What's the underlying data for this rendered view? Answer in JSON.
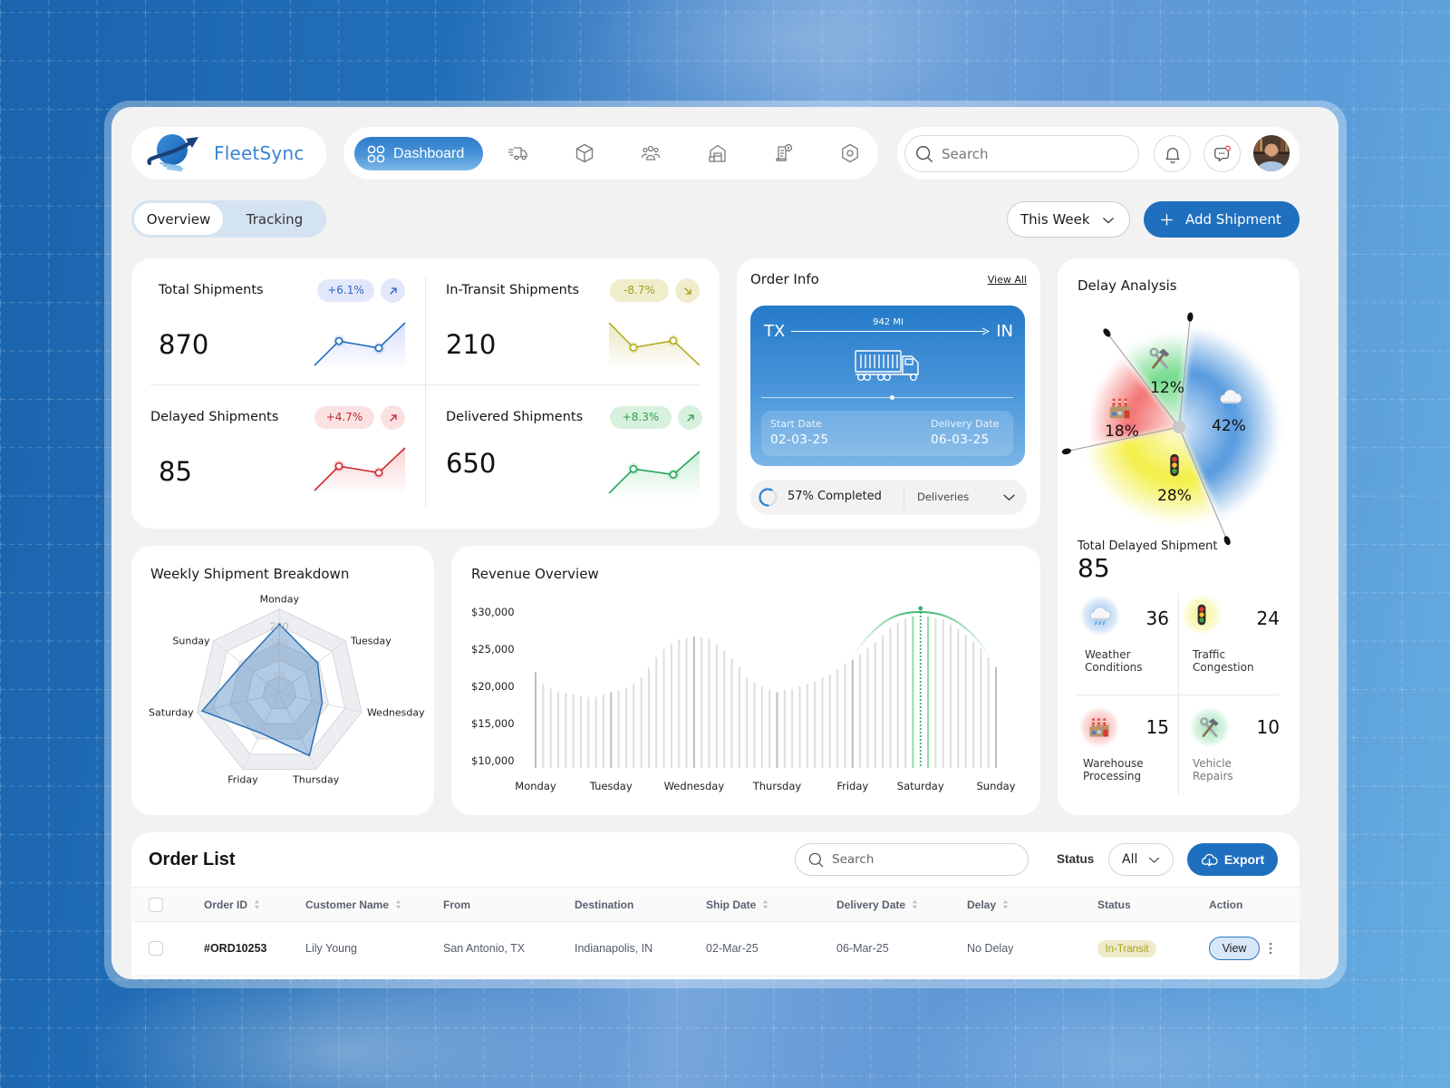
{
  "app": {
    "name": "FleetSync",
    "logo_icon": "globe-arrow-logo"
  },
  "nav": {
    "items": [
      {
        "label": "Dashboard",
        "icon": "dashboard-grid-icon",
        "active": true
      },
      {
        "icon": "fast-delivery-truck-icon"
      },
      {
        "icon": "package-box-icon"
      },
      {
        "icon": "team-users-icon"
      },
      {
        "icon": "warehouse-icon"
      },
      {
        "icon": "invoice-billing-icon"
      },
      {
        "icon": "settings-hexagon-icon"
      }
    ]
  },
  "header": {
    "search_placeholder": "Search",
    "notifications_icon": "bell-icon",
    "messages_icon": "chat-bubble-icon",
    "messages_unread": true,
    "avatar": "user-avatar"
  },
  "view_tabs": [
    {
      "label": "Overview",
      "active": true
    },
    {
      "label": "Tracking",
      "active": false
    }
  ],
  "period_select": {
    "value": "This Week"
  },
  "add_shipment": {
    "label": "Add Shipment"
  },
  "kpis": [
    {
      "title": "Total Shipments",
      "value": "870",
      "change": "+6.1%",
      "trend": "up",
      "color": "#1f6fc0",
      "badge_bg": "#e3e7fb",
      "badge_text": "#2b66c4",
      "fill": "#d9defa",
      "spark": [
        2,
        58,
        42,
        100
      ]
    },
    {
      "title": "In-Transit Shipments",
      "value": "210",
      "change": "-8.7%",
      "trend": "down",
      "color": "#b3ad1c",
      "badge_bg": "#efedcc",
      "badge_text": "#a39f1d",
      "fill": "#e9e7c2",
      "spark": [
        100,
        43,
        59,
        2
      ]
    },
    {
      "title": "Delayed Shipments",
      "value": "85",
      "change": "+4.7%",
      "trend": "up",
      "color": "#cf2a30",
      "badge_bg": "#fbe2e2",
      "badge_text": "#c0272d",
      "fill": "#f9d3d4",
      "spark": [
        2,
        58,
        43,
        100
      ]
    },
    {
      "title": "Delivered Shipments",
      "value": "650",
      "change": "+8.3%",
      "trend": "up",
      "color": "#22a35a",
      "badge_bg": "#d8f1de",
      "badge_text": "#2a9d4b",
      "fill": "#cdeed8",
      "spark": [
        4,
        60,
        47,
        100
      ]
    }
  ],
  "order_info": {
    "title": "Order Info",
    "view_all": "View All",
    "origin": "TX",
    "destination": "IN",
    "distance": "942 MI",
    "start_label": "Start Date",
    "start_date": "02-03-25",
    "delivery_label": "Delivery Date",
    "delivery_date": "06-03-25",
    "progress_pct": 57,
    "progress_label": "57% Completed",
    "filter_value": "Deliveries"
  },
  "delay_analysis": {
    "title": "Delay Analysis",
    "total_label": "Total Delayed Shipment",
    "total": "85",
    "reasons": [
      {
        "key": "weather",
        "label": "Weather Conditions",
        "count": "36",
        "pct": 42,
        "pct_label": "42%",
        "color": "#4a93dc",
        "icon": "cloud-rain-icon"
      },
      {
        "key": "traffic",
        "label": "Traffic Congestion",
        "count": "24",
        "pct": 28,
        "pct_label": "28%",
        "color": "#f2ee3a",
        "icon": "traffic-light-icon"
      },
      {
        "key": "warehouse",
        "label": "Warehouse Processing",
        "count": "15",
        "pct": 18,
        "pct_label": "18%",
        "color": "#f26a6a",
        "icon": "factory-icon"
      },
      {
        "key": "vehicle",
        "label": "Vehicle Repairs",
        "count": "10",
        "pct": 12,
        "pct_label": "12%",
        "color": "#6cd985",
        "icon": "tools-icon"
      }
    ]
  },
  "weekly_breakdown": {
    "title": "Weekly Shipment Breakdown"
  },
  "revenue": {
    "title": "Revenue Overview"
  },
  "order_list": {
    "title": "Order List",
    "search_placeholder": "Search",
    "status_label": "Status",
    "status_value": "All",
    "export_label": "Export",
    "columns": [
      {
        "label": "Order ID",
        "sortable": true
      },
      {
        "label": "Customer Name",
        "sortable": true
      },
      {
        "label": "From",
        "sortable": false
      },
      {
        "label": "Destination",
        "sortable": false
      },
      {
        "label": "Ship Date",
        "sortable": true
      },
      {
        "label": "Delivery Date",
        "sortable": true
      },
      {
        "label": "Delay",
        "sortable": true
      },
      {
        "label": "Status",
        "sortable": false
      },
      {
        "label": "Action",
        "sortable": false
      }
    ],
    "rows": [
      {
        "order_id": "#ORD10253",
        "customer": "Lily Young",
        "from": "San Antonio, TX",
        "destination": "Indianapolis, IN",
        "ship_date": "02-Mar-25",
        "delivery_date": "06-Mar-25",
        "delay": "No Delay",
        "status": "In-Transit",
        "action": "View"
      }
    ]
  },
  "chart_data": [
    {
      "id": "weekly-shipment-breakdown",
      "type": "radar",
      "title": "Weekly Shipment Breakdown",
      "categories": [
        "Monday",
        "Tuesday",
        "Wednesday",
        "Thursday",
        "Friday",
        "Saturday",
        "Sunday"
      ],
      "values": [
        205,
        145,
        130,
        205,
        130,
        235,
        140
      ],
      "ring_labels": [
        50,
        100,
        150,
        200
      ],
      "max": 250,
      "color": "#2a6fb4"
    },
    {
      "id": "revenue-overview",
      "type": "bar",
      "title": "Revenue Overview",
      "x_tick_labels": [
        "Monday",
        "Tuesday",
        "Wednesday",
        "Thursday",
        "Friday",
        "Saturday",
        "Sunday"
      ],
      "tick_indices": [
        0,
        10,
        21,
        32,
        42,
        51,
        61
      ],
      "y_tick_labels": [
        "$30,000",
        "$25,000",
        "$20,000",
        "$15,000",
        "$10,000"
      ],
      "y_ticks": [
        30000,
        25000,
        20000,
        15000,
        10000
      ],
      "ylim": [
        9000,
        30000
      ],
      "highlight_index": 51,
      "highlight_color": "#2fb36a",
      "values": [
        21900,
        20300,
        19700,
        19300,
        19100,
        18900,
        18700,
        18600,
        18600,
        19000,
        19200,
        19400,
        19800,
        20400,
        21200,
        22500,
        23900,
        25000,
        25700,
        26300,
        26500,
        26700,
        26600,
        26400,
        25600,
        24800,
        23700,
        22600,
        21200,
        20500,
        20000,
        19500,
        19200,
        19500,
        19600,
        20000,
        20300,
        20700,
        21200,
        21600,
        22300,
        23100,
        23600,
        24300,
        25100,
        25900,
        26900,
        27900,
        28600,
        29200,
        29400,
        30000,
        29400,
        29200,
        29000,
        28300,
        27700,
        26900,
        26000,
        25100,
        23900,
        22600
      ]
    },
    {
      "id": "delay-analysis",
      "type": "pie",
      "title": "Delay Analysis",
      "categories": [
        "Weather Conditions",
        "Traffic Congestion",
        "Warehouse Processing",
        "Vehicle Repairs"
      ],
      "values": [
        42,
        28,
        18,
        12
      ],
      "counts": [
        36,
        24,
        15,
        10
      ],
      "total": 85
    }
  ]
}
